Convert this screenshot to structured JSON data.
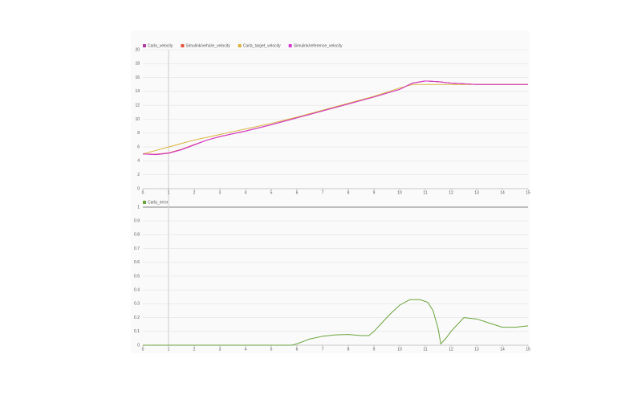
{
  "chart_data": [
    {
      "type": "line",
      "x": [
        0,
        0.5,
        1,
        1.5,
        2,
        2.5,
        3,
        3.5,
        4,
        5,
        6,
        7,
        8,
        9,
        10,
        10.5,
        11,
        11.5,
        12,
        13,
        14,
        15
      ],
      "series": [
        {
          "name": "Carla_velocity",
          "color": "#b0399f",
          "values": [
            5,
            4.9,
            5.1,
            5.6,
            6.3,
            7,
            7.5,
            7.9,
            8.3,
            9.2,
            10.2,
            11.2,
            12.2,
            13.2,
            14.3,
            15.2,
            15.5,
            15.4,
            15.2,
            15,
            15,
            15
          ]
        },
        {
          "name": "Simulink/vehicle_velocity",
          "color": "#e8503a",
          "values": [
            5,
            4.95,
            5.15,
            5.65,
            6.35,
            7,
            7.5,
            7.9,
            8.3,
            9.2,
            10.2,
            11.2,
            12.2,
            13.2,
            14.3,
            15.2,
            15.5,
            15.4,
            15.2,
            15,
            15,
            15
          ]
        },
        {
          "name": "Carla_target_velocity",
          "color": "#d8b33a",
          "values": [
            5,
            5.5,
            6,
            6.5,
            7,
            7.4,
            7.8,
            8.2,
            8.6,
            9.4,
            10.3,
            11.3,
            12.3,
            13.3,
            14.5,
            15,
            15,
            15,
            15,
            15,
            15,
            15
          ]
        },
        {
          "name": "Simulink/reference_velocity",
          "color": "#d43ad4",
          "values": [
            5,
            4.9,
            5.1,
            5.6,
            6.3,
            7,
            7.5,
            7.9,
            8.3,
            9.2,
            10.2,
            11.2,
            12.2,
            13.2,
            14.3,
            15.2,
            15.5,
            15.4,
            15.2,
            15,
            15,
            15
          ]
        }
      ],
      "xlim": [
        0,
        15
      ],
      "xticks": [
        0,
        1,
        2,
        3,
        4,
        5,
        6,
        7,
        8,
        9,
        10,
        11,
        12,
        13,
        14,
        15
      ],
      "ylim": [
        0,
        20
      ],
      "yticks": [
        0,
        2,
        4,
        6,
        8,
        10,
        12,
        14,
        16,
        18,
        20
      ],
      "grid": true
    },
    {
      "type": "line",
      "x": [
        0,
        1,
        2,
        3,
        4,
        5,
        5.8,
        6,
        6.5,
        7,
        7.5,
        8,
        8.5,
        8.8,
        9,
        9.3,
        9.6,
        10,
        10.4,
        10.8,
        11.1,
        11.3,
        11.5,
        11.6,
        11.8,
        12,
        12.5,
        13,
        13.5,
        14,
        14.5,
        15
      ],
      "series": [
        {
          "name": "Carla_error",
          "color": "#6aa33a",
          "values": [
            0,
            0,
            0,
            0,
            0,
            0,
            0,
            0.01,
            0.045,
            0.065,
            0.075,
            0.078,
            0.07,
            0.07,
            0.1,
            0.16,
            0.22,
            0.29,
            0.33,
            0.33,
            0.31,
            0.25,
            0.12,
            0.01,
            0.05,
            0.1,
            0.2,
            0.19,
            0.16,
            0.13,
            0.13,
            0.14
          ]
        }
      ],
      "xlim": [
        0,
        15
      ],
      "xticks": [
        0,
        1,
        2,
        3,
        4,
        5,
        6,
        7,
        8,
        9,
        10,
        11,
        12,
        13,
        14,
        15
      ],
      "ylim": [
        0,
        1
      ],
      "yticks": [
        0,
        0.1,
        0.2,
        0.3,
        0.4,
        0.5,
        0.6,
        0.7,
        0.8,
        0.9,
        1
      ],
      "grid": true
    }
  ]
}
